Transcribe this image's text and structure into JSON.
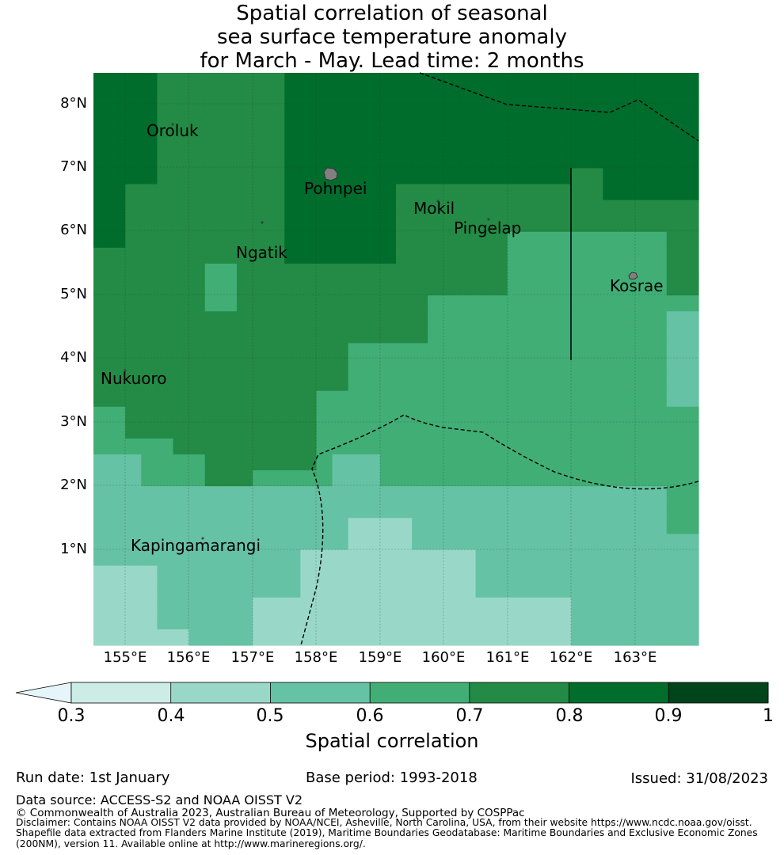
{
  "title": {
    "line1": "Spatial correlation of seasonal",
    "line2": "sea surface temperature anomaly",
    "line3": "for March - May. Lead time: 2 months"
  },
  "map": {
    "lat_labels": [
      "8°N",
      "7°N",
      "6°N",
      "5°N",
      "4°N",
      "3°N",
      "2°N",
      "1°N"
    ],
    "lon_labels": [
      "155°E",
      "156°E",
      "157°E",
      "158°E",
      "159°E",
      "160°E",
      "161°E",
      "162°E",
      "163°E"
    ],
    "places": [
      {
        "name": "Oroluk"
      },
      {
        "name": "Pohnpei"
      },
      {
        "name": "Mokil"
      },
      {
        "name": "Pingelap"
      },
      {
        "name": "Ngatik"
      },
      {
        "name": "Kosrae"
      },
      {
        "name": "Nukuoro"
      },
      {
        "name": "Kapingamarangi"
      }
    ],
    "colors": {
      "level_0_4": "#99d8c9",
      "level_0_5": "#66c2a4",
      "level_0_6": "#41ae76",
      "level_0_7": "#238b45",
      "level_0_8": "#006d2c",
      "island": "#808080"
    }
  },
  "colorbar": {
    "ticks": [
      "0.3",
      "0.4",
      "0.5",
      "0.6",
      "0.7",
      "0.8",
      "0.9",
      "1"
    ],
    "bin_colors": [
      "#ccece6",
      "#99d8c9",
      "#66c2a4",
      "#41ae76",
      "#238b45",
      "#006d2c",
      "#00441b"
    ],
    "extend_color": "#e5f5f9",
    "label": "Spatial correlation"
  },
  "footer": {
    "run_date": "Run date: 1st January",
    "base_period": "Base period: 1993-2018",
    "issued": "Issued: 31/08/2023",
    "data_source": "Data source: ACCESS-S2 and NOAA OISST V2",
    "copyright": "© Commonwealth of Australia 2023, Australian Bureau of Meteorology, Supported by COSPPac",
    "disclaimer_1": "Disclaimer: Contains NOAA OISST V2 data provided by NOAA/NCEI, Asheville, North Carolina, USA, from their website https://www.ncdc.noaa.gov/oisst.",
    "disclaimer_2": "Shapefile data extracted from Flanders Marine Institute (2019), Maritime Boundaries Geodatabase: Maritime Boundaries and Exclusive Economic Zones",
    "disclaimer_3": "(200NM), version 11. Available online at http://www.marineregions.org/."
  }
}
